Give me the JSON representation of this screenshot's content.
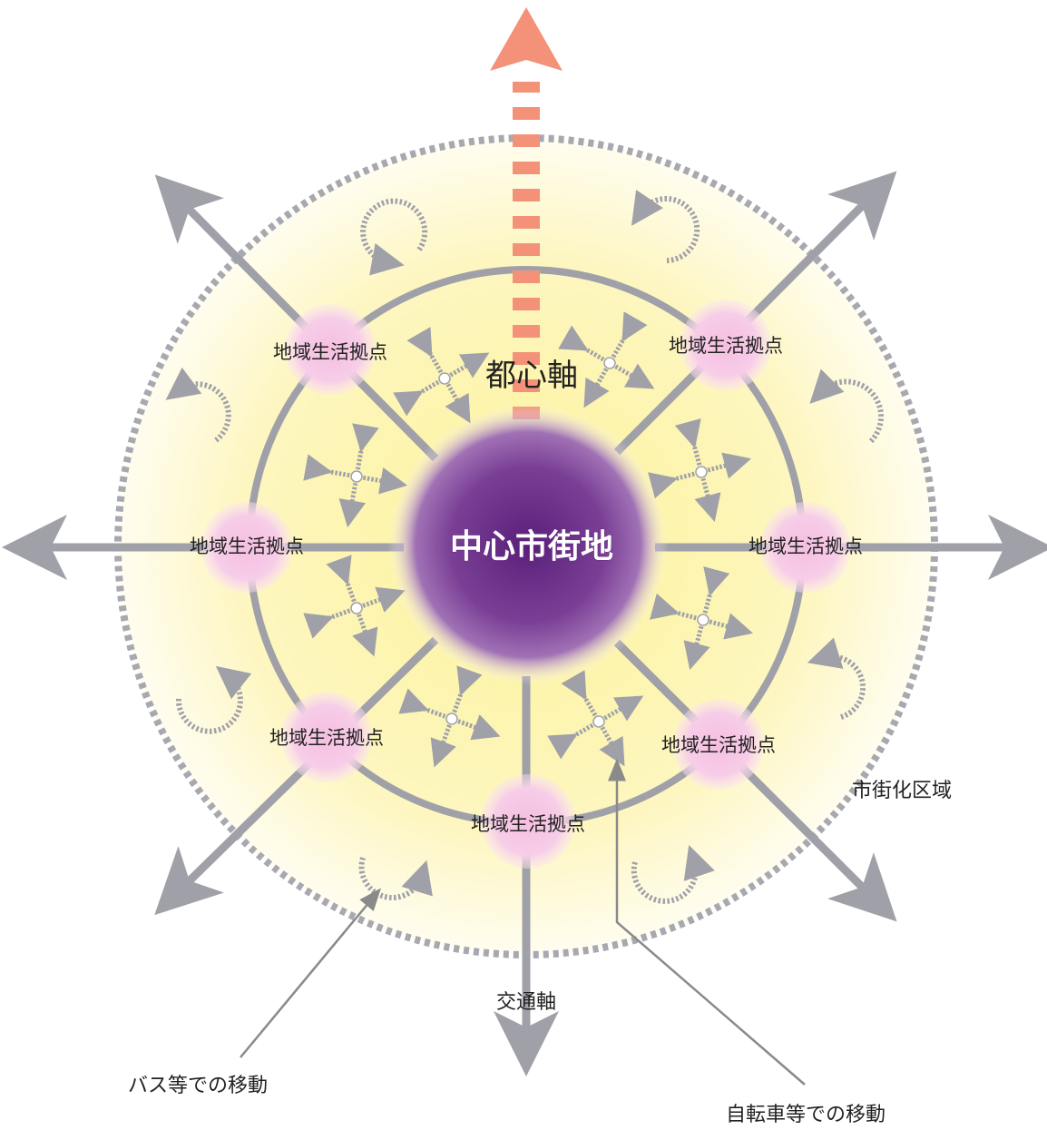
{
  "diagram": {
    "center_label": "中心市街地",
    "urban_axis_label": "都心軸",
    "node_label": "地域生活拠点",
    "urbanization_area_label": "市街化区域",
    "transport_axis_label": "交通軸",
    "bus_movement_label": "バス等での移動",
    "bicycle_movement_label": "自転車等での移動"
  },
  "colors": {
    "center": "#6a2f85",
    "node": "#f6c9e6",
    "area": "#fdf6b8",
    "axis_line": "#a0a0a8",
    "urban_axis": "#f39279"
  },
  "icons": [
    "circular-arrow-icon",
    "cross-arrow-icon"
  ]
}
